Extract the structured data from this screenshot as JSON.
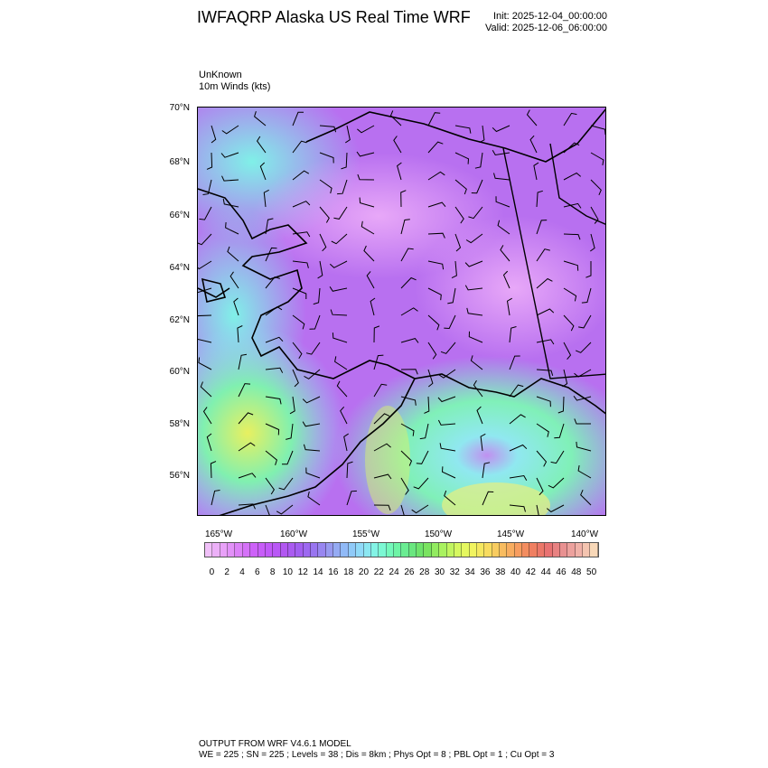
{
  "header": {
    "title": "IWFAQRP Alaska US Real Time WRF",
    "init": "Init: 2025-12-04_00:00:00",
    "valid": "Valid: 2025-12-06_06:00:00"
  },
  "subtitle": {
    "line1": "UnKnown",
    "line2": "10m Winds   (kts)"
  },
  "map": {
    "field": "10m wind speed",
    "units": "kts",
    "lat_labels": [
      "70°N",
      "68°N",
      "66°N",
      "64°N",
      "62°N",
      "60°N",
      "58°N",
      "56°N"
    ],
    "lon_labels": [
      "165°W",
      "160°W",
      "155°W",
      "150°W",
      "145°W",
      "140°W"
    ],
    "overlays": [
      "wind-barbs",
      "coastlines",
      "borders"
    ]
  },
  "colorbar": {
    "labels": [
      "0",
      "2",
      "4",
      "6",
      "8",
      "10",
      "12",
      "14",
      "16",
      "18",
      "20",
      "22",
      "24",
      "26",
      "28",
      "30",
      "32",
      "34",
      "36",
      "38",
      "40",
      "42",
      "44",
      "46",
      "48",
      "50"
    ],
    "colors": [
      "#f0c0f8",
      "#e8a0f8",
      "#dc80f8",
      "#cc60f8",
      "#c058f8",
      "#b058f0",
      "#a060f0",
      "#9878f0",
      "#98a0f0",
      "#90c0f8",
      "#90e0f8",
      "#80f8e0",
      "#70f8b0",
      "#68e888",
      "#70e060",
      "#a0f060",
      "#d0f860",
      "#f0f860",
      "#f8e060",
      "#f8c060",
      "#f8a060",
      "#f08060",
      "#e87070",
      "#e89090",
      "#f0b0a8",
      "#f8d8b8"
    ]
  },
  "footer": {
    "line1": "OUTPUT FROM WRF V4.6.1 MODEL",
    "line2": "WE = 225 ; SN = 225 ; Levels = 38 ; Dis = 8km ; Phys Opt = 8 ; PBL Opt = 1 ; Cu Opt = 3"
  }
}
